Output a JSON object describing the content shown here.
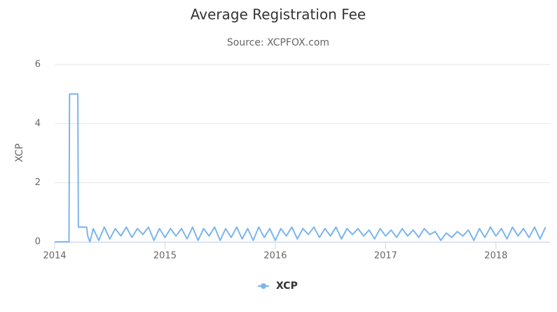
{
  "chart_data": {
    "type": "line",
    "title": "Average Registration Fee",
    "subtitle": "Source: XCPFOX.com",
    "y_label": "XCP",
    "x": [
      2014.0,
      2014.13,
      2014.135,
      2014.21,
      2014.215,
      2014.29,
      2014.3,
      2014.32,
      2014.35,
      2014.4,
      2014.45,
      2014.5,
      2014.55,
      2014.6,
      2014.65,
      2014.7,
      2014.75,
      2014.8,
      2014.85,
      2014.9,
      2014.95,
      2015.0,
      2015.05,
      2015.1,
      2015.15,
      2015.2,
      2015.25,
      2015.3,
      2015.35,
      2015.4,
      2015.45,
      2015.5,
      2015.55,
      2015.6,
      2015.65,
      2015.7,
      2015.75,
      2015.8,
      2015.85,
      2015.9,
      2015.95,
      2016.0,
      2016.05,
      2016.1,
      2016.15,
      2016.2,
      2016.25,
      2016.3,
      2016.35,
      2016.4,
      2016.45,
      2016.5,
      2016.55,
      2016.6,
      2016.65,
      2016.7,
      2016.75,
      2016.8,
      2016.85,
      2016.9,
      2016.95,
      2017.0,
      2017.05,
      2017.1,
      2017.15,
      2017.2,
      2017.25,
      2017.3,
      2017.35,
      2017.4,
      2017.45,
      2017.5,
      2017.55,
      2017.6,
      2017.65,
      2017.7,
      2017.75,
      2017.8,
      2017.85,
      2017.9,
      2017.95,
      2018.0,
      2018.05,
      2018.1,
      2018.15,
      2018.2,
      2018.25,
      2018.3,
      2018.35,
      2018.4,
      2018.45
    ],
    "series": [
      {
        "name": "XCP",
        "color": "#7cb5ec",
        "values": [
          0,
          0,
          5,
          5,
          0.5,
          0.5,
          0.2,
          0,
          0.45,
          0.05,
          0.5,
          0.1,
          0.45,
          0.2,
          0.5,
          0.15,
          0.45,
          0.25,
          0.5,
          0.05,
          0.45,
          0.15,
          0.45,
          0.2,
          0.45,
          0.1,
          0.5,
          0.05,
          0.45,
          0.2,
          0.5,
          0.05,
          0.45,
          0.15,
          0.5,
          0.1,
          0.45,
          0.05,
          0.5,
          0.15,
          0.45,
          0.05,
          0.45,
          0.2,
          0.5,
          0.1,
          0.45,
          0.25,
          0.5,
          0.15,
          0.45,
          0.2,
          0.5,
          0.1,
          0.45,
          0.25,
          0.45,
          0.2,
          0.4,
          0.1,
          0.45,
          0.2,
          0.4,
          0.15,
          0.45,
          0.2,
          0.4,
          0.15,
          0.45,
          0.25,
          0.35,
          0.05,
          0.3,
          0.15,
          0.35,
          0.2,
          0.4,
          0.05,
          0.45,
          0.15,
          0.5,
          0.2,
          0.45,
          0.1,
          0.5,
          0.2,
          0.45,
          0.15,
          0.5,
          0.1,
          0.5
        ]
      }
    ],
    "xlim": [
      2014,
      2018.49
    ],
    "xticks": [
      2014,
      2015,
      2016,
      2017,
      2018
    ],
    "ylim": [
      0,
      6
    ],
    "yticks": [
      0,
      2,
      4,
      6
    ],
    "grid": true
  }
}
